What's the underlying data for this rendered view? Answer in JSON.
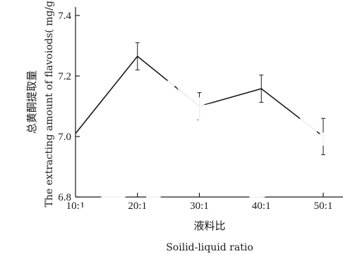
{
  "chart_data": {
    "type": "line",
    "x": [
      "10:1",
      "20:1",
      "30:1",
      "40:1",
      "50:1"
    ],
    "series": [
      {
        "values": [
          7.01,
          7.265,
          7.1,
          7.158,
          7.0
        ],
        "error": [
          0,
          0.045,
          0.045,
          0.045,
          0.06
        ]
      }
    ],
    "ylim": [
      6.8,
      7.4
    ],
    "yticks": [
      "6.8",
      "7.0",
      "7.2",
      "7.4"
    ],
    "xlabel_cn": "液料比",
    "xlabel_en": "Soilid-liquid ratio",
    "ylabel_cn": "总黄酮提取量",
    "ylabel_en": "The extracting amount of flavoiods( mg/g)",
    "grid": false,
    "line_color": "#1a1a1a"
  }
}
